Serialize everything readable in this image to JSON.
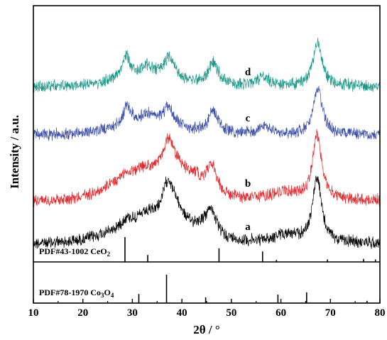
{
  "chart_data": {
    "type": "line",
    "xlabel": "2θ / °",
    "ylabel": "Intensity / a.u.",
    "xlim": [
      10,
      80
    ],
    "xticks": [
      "10",
      "20",
      "30",
      "40",
      "50",
      "60",
      "70",
      "80"
    ],
    "series": [
      {
        "name": "a",
        "color": "#000000",
        "baseline_intensity": 0.0,
        "peaks": [
          {
            "two_theta": 28.8,
            "height": 0.1,
            "width": 1.2
          },
          {
            "two_theta": 33.0,
            "height": 0.12,
            "width": 3.0
          },
          {
            "two_theta": 37.2,
            "height": 0.55,
            "width": 1.4
          },
          {
            "two_theta": 39.0,
            "height": 0.22,
            "width": 2.0
          },
          {
            "two_theta": 45.9,
            "height": 0.4,
            "width": 1.3
          },
          {
            "two_theta": 43.5,
            "height": 0.1,
            "width": 1.8
          },
          {
            "two_theta": 61.0,
            "height": 0.12,
            "width": 3.0
          },
          {
            "two_theta": 67.3,
            "height": 0.95,
            "width": 1.1
          }
        ]
      },
      {
        "name": "b",
        "color": "#e8262a",
        "baseline_intensity": 0.0,
        "peaks": [
          {
            "two_theta": 28.8,
            "height": 0.12,
            "width": 2.5
          },
          {
            "two_theta": 33.0,
            "height": 0.12,
            "width": 3.0
          },
          {
            "two_theta": 37.3,
            "height": 0.55,
            "width": 1.4
          },
          {
            "two_theta": 39.5,
            "height": 0.2,
            "width": 2.0
          },
          {
            "two_theta": 42.5,
            "height": 0.18,
            "width": 1.5
          },
          {
            "two_theta": 46.0,
            "height": 0.45,
            "width": 1.3
          },
          {
            "two_theta": 60.5,
            "height": 0.12,
            "width": 3.0
          },
          {
            "two_theta": 67.3,
            "height": 1.0,
            "width": 1.1
          }
        ]
      },
      {
        "name": "c",
        "color": "#3a4fb0",
        "baseline_intensity": 0.0,
        "peaks": [
          {
            "two_theta": 28.9,
            "height": 0.35,
            "width": 1.1
          },
          {
            "two_theta": 33.0,
            "height": 0.2,
            "width": 1.8
          },
          {
            "two_theta": 37.3,
            "height": 0.35,
            "width": 1.3
          },
          {
            "two_theta": 46.3,
            "height": 0.42,
            "width": 1.2
          },
          {
            "two_theta": 56.5,
            "height": 0.15,
            "width": 1.5
          },
          {
            "two_theta": 67.5,
            "height": 0.85,
            "width": 1.1
          }
        ]
      },
      {
        "name": "d",
        "color": "#1f9a8a",
        "baseline_intensity": 0.0,
        "peaks": [
          {
            "two_theta": 28.7,
            "height": 0.45,
            "width": 1.0
          },
          {
            "two_theta": 32.8,
            "height": 0.22,
            "width": 1.6
          },
          {
            "two_theta": 37.4,
            "height": 0.42,
            "width": 1.3
          },
          {
            "two_theta": 46.4,
            "height": 0.45,
            "width": 1.2
          },
          {
            "two_theta": 56.5,
            "height": 0.18,
            "width": 1.5
          },
          {
            "two_theta": 67.4,
            "height": 0.9,
            "width": 1.1
          }
        ]
      }
    ],
    "reference_patterns": [
      {
        "label": "PDF#43-1002 CeO",
        "label_sub": "2",
        "lines": [
          {
            "two_theta": 28.5,
            "intensity": 1.0
          },
          {
            "two_theta": 33.1,
            "intensity": 0.28
          },
          {
            "two_theta": 47.5,
            "intensity": 0.55
          },
          {
            "two_theta": 56.3,
            "intensity": 0.42
          },
          {
            "two_theta": 59.1,
            "intensity": 0.08
          },
          {
            "two_theta": 69.4,
            "intensity": 0.1
          },
          {
            "two_theta": 76.7,
            "intensity": 0.12
          },
          {
            "two_theta": 79.1,
            "intensity": 0.1
          }
        ]
      },
      {
        "label": "PDF#78-1970 Co",
        "label_sub": "3",
        "label_mid": "O",
        "label_sub2": "4",
        "lines": [
          {
            "two_theta": 31.3,
            "intensity": 0.32
          },
          {
            "two_theta": 36.9,
            "intensity": 1.0
          },
          {
            "two_theta": 44.8,
            "intensity": 0.2
          },
          {
            "two_theta": 59.4,
            "intensity": 0.3
          },
          {
            "two_theta": 65.2,
            "intensity": 0.38
          },
          {
            "two_theta": 77.4,
            "intensity": 0.08
          }
        ]
      }
    ],
    "grid": false,
    "legend": "none (inline labels a–d)"
  }
}
